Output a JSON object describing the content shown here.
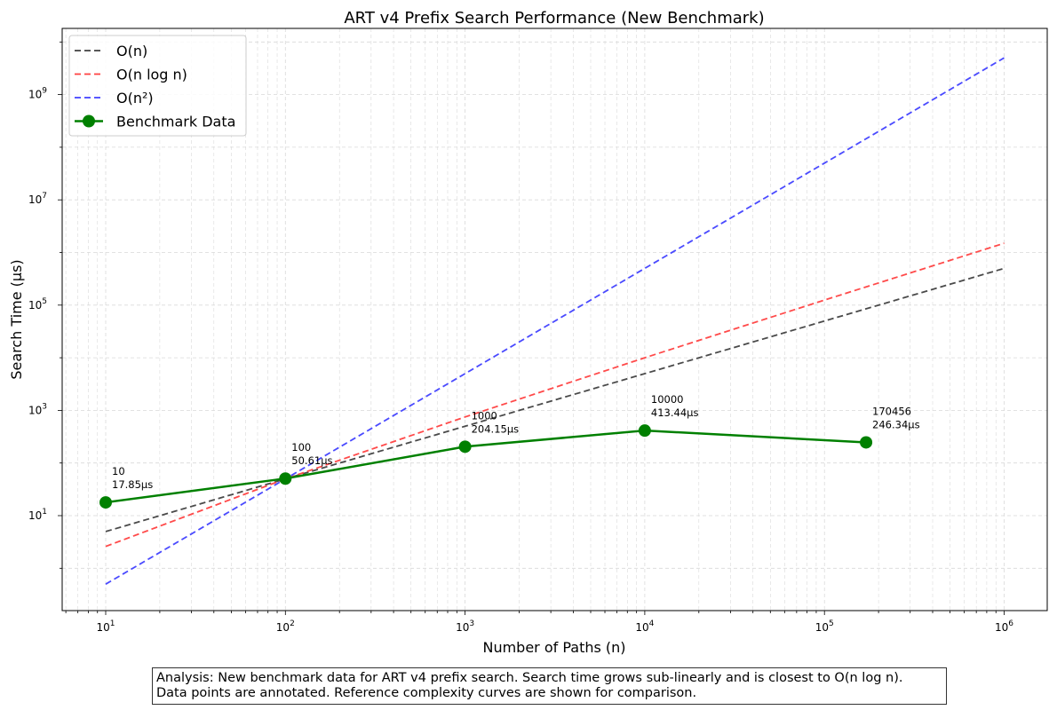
{
  "chart_data": {
    "type": "line",
    "title": "ART v4 Prefix Search Performance (New Benchmark)",
    "xlabel": "Number of Paths (n)",
    "ylabel": "Search Time (µs)",
    "xscale": "log",
    "yscale": "log",
    "grid": true,
    "legend_position": "top-left",
    "xticks": [
      {
        "base": "10",
        "exp": "1"
      },
      {
        "base": "10",
        "exp": "2"
      },
      {
        "base": "10",
        "exp": "3"
      },
      {
        "base": "10",
        "exp": "4"
      },
      {
        "base": "10",
        "exp": "5"
      },
      {
        "base": "10",
        "exp": "6"
      }
    ],
    "yticks": [
      {
        "base": "10",
        "exp": "1"
      },
      {
        "base": "10",
        "exp": "3"
      },
      {
        "base": "10",
        "exp": "5"
      },
      {
        "base": "10",
        "exp": "7"
      },
      {
        "base": "10",
        "exp": "9"
      }
    ],
    "reference_series": [
      {
        "name": "O(n)",
        "color": "#404040",
        "style": "dashed",
        "x": [
          10,
          100,
          1000,
          10000,
          100000,
          1000000
        ],
        "y": [
          5,
          50,
          500,
          5000,
          50000,
          500000
        ]
      },
      {
        "name": "O(n log n)",
        "color": "#ff4040",
        "style": "dashed",
        "x": [
          10,
          100,
          1000,
          10000,
          100000,
          1000000
        ],
        "y": [
          2.6,
          50,
          750,
          10000,
          125000,
          1500000
        ]
      },
      {
        "name": "O(n²)",
        "color": "#4040ff",
        "style": "dashed",
        "x": [
          10,
          100,
          1000,
          10000,
          100000,
          1000000
        ],
        "y": [
          0.5,
          50,
          5000,
          500000,
          50000000,
          5000000000
        ]
      }
    ],
    "series": [
      {
        "name": "Benchmark Data",
        "color": "#008000",
        "style": "solid-markers",
        "x": [
          10,
          100,
          1000,
          10000,
          170456
        ],
        "y": [
          17.85,
          50.61,
          204.15,
          413.44,
          246.34
        ],
        "labels": [
          {
            "n": "10",
            "t": "17.85µs"
          },
          {
            "n": "100",
            "t": "50.61µs"
          },
          {
            "n": "1000",
            "t": "204.15µs"
          },
          {
            "n": "10000",
            "t": "413.44µs"
          },
          {
            "n": "170456",
            "t": "246.34µs"
          }
        ]
      }
    ]
  },
  "analysis": {
    "line1": "Analysis: New benchmark data for ART v4 prefix search. Search time grows sub-linearly and is closest to O(n log n).",
    "line2": "Data points are annotated. Reference complexity curves are shown for comparison."
  }
}
